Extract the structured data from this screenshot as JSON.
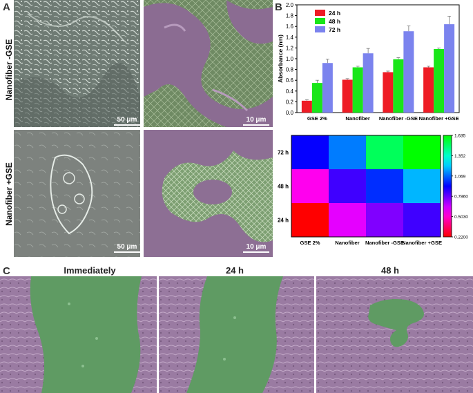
{
  "panels": {
    "a": "A",
    "b": "B",
    "c": "C"
  },
  "panel_a": {
    "row_labels": [
      "Nanofiber -GSE",
      "Nanofiber +GSE"
    ],
    "scale_bars": [
      "50 μm",
      "10 μm",
      "50 μm",
      "10 μm"
    ]
  },
  "panel_c": {
    "titles": [
      "Immediately",
      "24 h",
      "48 h"
    ]
  },
  "colors": {
    "s24": "#ee1c25",
    "s48": "#19e619",
    "s72": "#7b83ee",
    "purple_sem": "#8c6e92",
    "green_sem": "#7c9a6e",
    "gray_sem": "#7d857f",
    "gap_green": "#5e9a62",
    "cell_purple": "#9c7aa3"
  },
  "chart_data": [
    {
      "type": "bar",
      "categories": [
        "GSE 2%",
        "Nanofiber",
        "Nanofiber -GSE",
        "Nanofiber +GSE"
      ],
      "series": [
        {
          "name": "24 h",
          "values": [
            0.22,
            0.61,
            0.75,
            0.84
          ],
          "errors": [
            0.02,
            0.02,
            0.02,
            0.02
          ]
        },
        {
          "name": "48 h",
          "values": [
            0.55,
            0.84,
            0.99,
            1.18
          ],
          "errors": [
            0.05,
            0.02,
            0.03,
            0.02
          ]
        },
        {
          "name": "72 h",
          "values": [
            0.92,
            1.1,
            1.51,
            1.64
          ],
          "errors": [
            0.07,
            0.09,
            0.1,
            0.15
          ]
        }
      ],
      "ylabel": "Absorbance (nm)",
      "ylim": [
        0.0,
        2.0
      ],
      "yticks": [
        "0.0",
        "0.2",
        "0.4",
        "0.6",
        "0.8",
        "1.0",
        "1.2",
        "1.4",
        "1.6",
        "1.8",
        "2.0"
      ],
      "legend": "top-left"
    },
    {
      "type": "heatmap",
      "x_categories": [
        "GSE 2%",
        "Nanofiber",
        "Nanofiber -GSE",
        "Nanofiber +GSE"
      ],
      "y_categories": [
        "72 h",
        "48 h",
        "24 h"
      ],
      "values": [
        [
          0.92,
          1.1,
          1.51,
          1.64
        ],
        [
          0.55,
          0.84,
          0.99,
          1.18
        ],
        [
          0.22,
          0.61,
          0.75,
          0.84
        ]
      ],
      "colorbar_ticks": [
        "1.635",
        "1.352",
        "1.069",
        "0.7860",
        "0.5030",
        "0.2200"
      ],
      "colorbar_range": [
        0.22,
        1.635
      ]
    }
  ]
}
